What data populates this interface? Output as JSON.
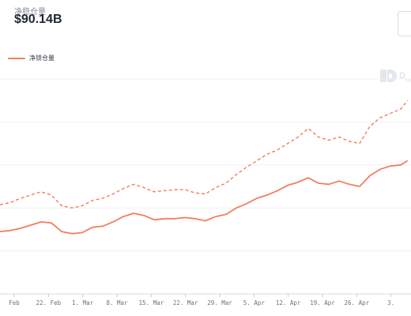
{
  "header": {
    "metric_label": "净稳仓量",
    "metric_value": "$90.14B"
  },
  "legend": {
    "series_label": "净锁仓量"
  },
  "watermark": {
    "letter": "D",
    "sub": "Yo"
  },
  "colors": {
    "line": "#f07f5c",
    "grid": "#eef0f3",
    "tick": "#6b7280",
    "text": "#1f2533"
  },
  "chart_data": {
    "type": "line",
    "title": "",
    "xlabel": "",
    "ylabel": "",
    "x_tick_labels": [
      "Feb",
      "22. Feb",
      "1. Mar",
      "8. Mar",
      "15. Mar",
      "22. Mar",
      "29. Mar",
      "5. Apr",
      "12. Apr",
      "19. Apr",
      "26. Apr",
      "3."
    ],
    "grid": true,
    "legend_position": "top-left",
    "series": [
      {
        "name": "净锁仓量",
        "style": "solid",
        "points": [
          [
            0,
            49.0
          ],
          [
            1.5,
            49.5
          ],
          [
            3,
            50.5
          ],
          [
            4.5,
            52.0
          ],
          [
            6,
            53.5
          ],
          [
            7.5,
            53.0
          ],
          [
            9,
            49.0
          ],
          [
            10.5,
            48.0
          ],
          [
            12,
            48.5
          ],
          [
            13.5,
            51.0
          ],
          [
            15,
            51.5
          ],
          [
            16.5,
            53.5
          ],
          [
            18,
            56.0
          ],
          [
            19.5,
            57.5
          ],
          [
            21,
            56.5
          ],
          [
            22.5,
            54.5
          ],
          [
            24,
            55.0
          ],
          [
            25.5,
            55.0
          ],
          [
            27,
            55.5
          ],
          [
            28.5,
            55.0
          ],
          [
            30,
            54.0
          ],
          [
            31.5,
            56.0
          ],
          [
            33,
            57.0
          ],
          [
            34.5,
            60.0
          ],
          [
            36,
            62.0
          ],
          [
            37.5,
            64.5
          ],
          [
            39,
            66.0
          ],
          [
            40.5,
            68.0
          ],
          [
            42,
            70.5
          ],
          [
            43.5,
            72.0
          ],
          [
            45,
            74.0
          ],
          [
            46.5,
            71.5
          ],
          [
            48,
            71.0
          ],
          [
            49.5,
            72.5
          ],
          [
            51,
            71.0
          ],
          [
            52.5,
            70.0
          ],
          [
            54,
            75.0
          ],
          [
            55.5,
            78.0
          ],
          [
            57,
            79.5
          ],
          [
            58.5,
            80.0
          ],
          [
            59.5,
            82.0
          ]
        ]
      },
      {
        "name": "",
        "style": "dashed",
        "points": [
          [
            0,
            61.5
          ],
          [
            1.5,
            62.5
          ],
          [
            3,
            64.5
          ],
          [
            4.5,
            66.0
          ],
          [
            6,
            67.5
          ],
          [
            7.5,
            66.0
          ],
          [
            9,
            61.0
          ],
          [
            10.5,
            60.0
          ],
          [
            12,
            61.0
          ],
          [
            13.5,
            63.5
          ],
          [
            15,
            64.5
          ],
          [
            16.5,
            66.5
          ],
          [
            18,
            69.0
          ],
          [
            19.5,
            71.0
          ],
          [
            21,
            69.5
          ],
          [
            22.5,
            67.5
          ],
          [
            24,
            68.0
          ],
          [
            25.5,
            68.5
          ],
          [
            27,
            68.5
          ],
          [
            28.5,
            67.0
          ],
          [
            30,
            66.5
          ],
          [
            31.5,
            69.5
          ],
          [
            33,
            71.5
          ],
          [
            34.5,
            75.5
          ],
          [
            36,
            79.0
          ],
          [
            37.5,
            82.0
          ],
          [
            39,
            85.0
          ],
          [
            40.5,
            87.0
          ],
          [
            42,
            90.0
          ],
          [
            43.5,
            93.0
          ],
          [
            45,
            97.0
          ],
          [
            46.5,
            93.0
          ],
          [
            48,
            91.5
          ],
          [
            49.5,
            93.0
          ],
          [
            51,
            91.0
          ],
          [
            52.5,
            90.0
          ],
          [
            54,
            98.0
          ],
          [
            55.5,
            102.0
          ],
          [
            57,
            104.0
          ],
          [
            58.5,
            106.0
          ],
          [
            59.5,
            110.0
          ]
        ]
      }
    ],
    "x_range": [
      0,
      60
    ],
    "ylim": [
      20,
      120
    ]
  }
}
